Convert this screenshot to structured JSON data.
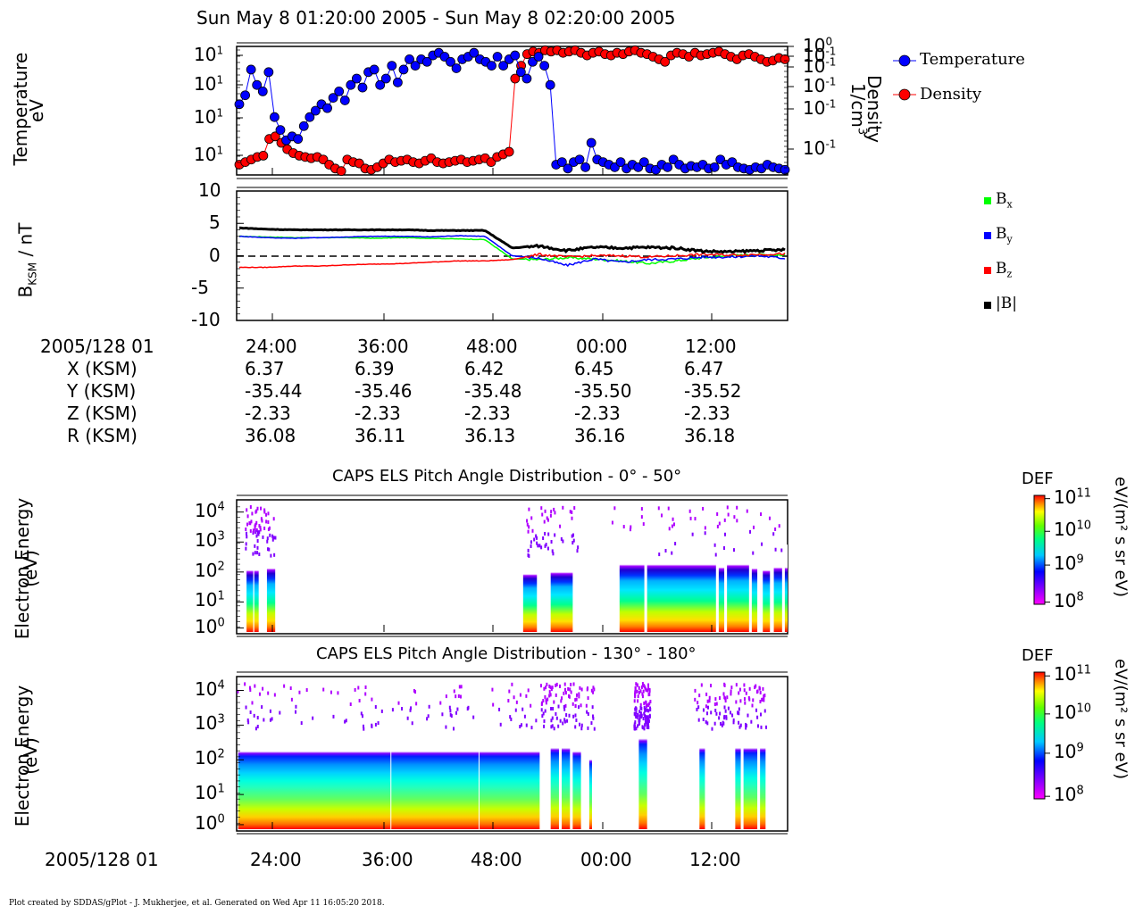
{
  "title": "Sun May 8 01:20:00 2005 - Sun May 8 02:20:00 2005",
  "panel1": {
    "ylabel_left_1": "Temperature",
    "ylabel_left_2": "eV",
    "ylabel_right_1": "Density",
    "ylabel_right_2": "1/cm",
    "ylabel_right_sup": "3",
    "left_ticks": [
      "10",
      "10",
      "10",
      "10"
    ],
    "left_tick_exps": [
      "1",
      "1",
      "1",
      "1"
    ],
    "right_ticks": [
      "10",
      "10",
      "10",
      "10",
      "10"
    ],
    "right_tick_exps": [
      "0",
      "-1",
      "-1",
      "-1",
      "-1"
    ],
    "right_tick_top2": "-1",
    "legend": [
      {
        "name": "Temperature",
        "color": "#0000ff"
      },
      {
        "name": "Density",
        "color": "#ff0000"
      }
    ]
  },
  "panel2": {
    "ylabel": "B",
    "ylabel_sub": "KSM",
    "ylabel_tail": " / nT",
    "yticks": [
      "10",
      "5",
      "0",
      "-5",
      "-10"
    ],
    "legend": [
      {
        "name": "B",
        "sub": "x",
        "color": "#00ff00"
      },
      {
        "name": "B",
        "sub": "y",
        "color": "#0000ff"
      },
      {
        "name": "B",
        "sub": "z",
        "color": "#ff0000"
      },
      {
        "name": "|B|",
        "sub": "",
        "color": "#000000"
      }
    ]
  },
  "ephemeris": {
    "epoch": "2005/128 01",
    "rows": [
      {
        "label": "X (KSM)",
        "values": [
          "6.37",
          "6.39",
          "6.42",
          "6.45",
          "6.47"
        ]
      },
      {
        "label": "Y (KSM)",
        "values": [
          "-35.44",
          "-35.46",
          "-35.48",
          "-35.50",
          "-35.52"
        ]
      },
      {
        "label": "Z (KSM)",
        "values": [
          "-2.33",
          "-2.33",
          "-2.33",
          "-2.33",
          "-2.33"
        ]
      },
      {
        "label": "R (KSM)",
        "values": [
          "36.08",
          "36.11",
          "36.13",
          "36.16",
          "36.18"
        ]
      }
    ],
    "time_ticks": [
      "24:00",
      "36:00",
      "48:00",
      "00:00",
      "12:00"
    ]
  },
  "panel3": {
    "title": "CAPS ELS Pitch Angle Distribution - 0° - 50°",
    "ylabel_1": "Electron Energy",
    "ylabel_2": "(eV)",
    "yticks_exp": [
      "4",
      "3",
      "2",
      "1",
      "0"
    ],
    "colorbar_title": "DEF",
    "colorbar_unit": "eV/(m² s sr eV)",
    "colorbar_ticks_exp": [
      "11",
      "10",
      "9",
      "8"
    ]
  },
  "panel4": {
    "title": "CAPS ELS Pitch Angle Distribution - 130° - 180°",
    "ylabel_1": "Electron Energy",
    "ylabel_2": "(eV)",
    "yticks_exp": [
      "4",
      "3",
      "2",
      "1",
      "0"
    ],
    "colorbar_title": "DEF",
    "colorbar_unit": "eV/(m² s sr eV)",
    "colorbar_ticks_exp": [
      "11",
      "10",
      "9",
      "8"
    ]
  },
  "bottom_axis": {
    "epoch": "2005/128 01",
    "time_ticks": [
      "24:00",
      "36:00",
      "48:00",
      "00:00",
      "12:00"
    ]
  },
  "footer": "Plot created by SDDAS/gPlot - J. Mukherjee, et al.  Generated on Wed Apr 11 16:05:20 2018.",
  "chart_data": [
    {
      "type": "scatter",
      "title": "",
      "xlabel": "",
      "ylabel": "Temperature eV",
      "y2label": "Density 1/cm3",
      "x_ticks": [
        "24:00",
        "36:00",
        "48:00",
        "00:00",
        "12:00"
      ],
      "series": [
        {
          "name": "Temperature",
          "color": "#0000ff",
          "y_frac": [
            0.55,
            0.62,
            0.82,
            0.7,
            0.65,
            0.8,
            0.45,
            0.35,
            0.27,
            0.3,
            0.28,
            0.38,
            0.45,
            0.5,
            0.55,
            0.52,
            0.6,
            0.65,
            0.58,
            0.7,
            0.75,
            0.68,
            0.8,
            0.82,
            0.7,
            0.75,
            0.85,
            0.72,
            0.82,
            0.9,
            0.85,
            0.9,
            0.88,
            0.93,
            0.95,
            0.92,
            0.88,
            0.83,
            0.9,
            0.92,
            0.95,
            0.9,
            0.88,
            0.85,
            0.92,
            0.85,
            0.9,
            0.93,
            0.8,
            0.75,
            0.88,
            0.92,
            0.85,
            0.7,
            0.08,
            0.1,
            0.05,
            0.1,
            0.12,
            0.06,
            0.25,
            0.12,
            0.1,
            0.08,
            0.06,
            0.1,
            0.05,
            0.08,
            0.06,
            0.1,
            0.05,
            0.04,
            0.08,
            0.06,
            0.12,
            0.08,
            0.05,
            0.07,
            0.06,
            0.08,
            0.05,
            0.06,
            0.12,
            0.08,
            0.1,
            0.06,
            0.05,
            0.04,
            0.06,
            0.05,
            0.08,
            0.06,
            0.05,
            0.04
          ]
        },
        {
          "name": "Density",
          "color": "#ff0000",
          "y_frac": [
            0.08,
            0.1,
            0.12,
            0.14,
            0.15,
            0.28,
            0.3,
            0.25,
            0.2,
            0.17,
            0.15,
            0.14,
            0.13,
            0.14,
            0.12,
            0.08,
            0.05,
            0.03,
            0.12,
            0.1,
            0.09,
            0.05,
            0.04,
            0.06,
            0.09,
            0.12,
            0.1,
            0.11,
            0.12,
            0.1,
            0.09,
            0.11,
            0.13,
            0.1,
            0.09,
            0.1,
            0.11,
            0.12,
            0.1,
            0.11,
            0.12,
            0.13,
            0.1,
            0.14,
            0.16,
            0.18,
            0.75,
            0.85,
            0.94,
            0.96,
            0.95,
            0.97,
            0.96,
            0.97,
            0.95,
            0.96,
            0.97,
            0.95,
            0.93,
            0.95,
            0.96,
            0.94,
            0.93,
            0.95,
            0.94,
            0.96,
            0.97,
            0.95,
            0.94,
            0.92,
            0.9,
            0.88,
            0.93,
            0.95,
            0.94,
            0.92,
            0.95,
            0.93,
            0.94,
            0.95,
            0.96,
            0.94,
            0.92,
            0.9,
            0.93,
            0.94,
            0.92,
            0.9,
            0.88,
            0.89,
            0.91,
            0.9
          ]
        }
      ]
    },
    {
      "type": "line",
      "title": "",
      "ylabel": "BKSM / nT",
      "ylim": [
        -10,
        10
      ],
      "x_ticks": [
        "24:00",
        "36:00",
        "48:00",
        "00:00",
        "12:00"
      ],
      "series": [
        {
          "name": "Bx",
          "color": "#00ff00",
          "values": [
            3.0,
            2.9,
            2.8,
            2.8,
            2.8,
            2.7,
            2.8,
            2.7,
            2.6,
            2.5,
            -0.5,
            -0.6,
            -0.3,
            -0.5,
            -0.8,
            -1.2,
            -0.8,
            -0.3,
            0.0,
            0.2,
            0.1
          ]
        },
        {
          "name": "By",
          "color": "#0000ff",
          "values": [
            3.0,
            2.8,
            2.7,
            2.8,
            2.9,
            3.0,
            3.0,
            2.9,
            3.1,
            3.0,
            0.0,
            -0.4,
            -1.5,
            -0.5,
            -1.0,
            -0.6,
            -0.5,
            -0.2,
            -0.2,
            0.0,
            -0.4
          ]
        },
        {
          "name": "Bz",
          "color": "#ff0000",
          "values": [
            -1.8,
            -1.8,
            -1.6,
            -1.6,
            -1.4,
            -1.3,
            -1.2,
            -1.0,
            -0.8,
            -0.8,
            -0.6,
            0.2,
            -0.2,
            0.0,
            0.0,
            -0.2,
            0.0,
            0.2,
            0.1,
            0.2,
            0.3
          ]
        },
        {
          "name": "|B|",
          "color": "#000000",
          "values": [
            4.3,
            4.1,
            4.0,
            4.0,
            4.0,
            4.0,
            4.0,
            3.9,
            3.9,
            3.9,
            1.2,
            1.5,
            0.8,
            1.3,
            1.2,
            1.3,
            1.2,
            0.7,
            0.6,
            0.8,
            0.9
          ]
        }
      ]
    },
    {
      "type": "heatmap",
      "title": "CAPS ELS Pitch Angle Distribution - 0° - 50°",
      "ylabel": "Electron Energy (eV)",
      "colorbar": "DEF eV/(m² s sr eV)",
      "clim_exp": [
        8,
        11
      ]
    },
    {
      "type": "heatmap",
      "title": "CAPS ELS Pitch Angle Distribution - 130° - 180°",
      "ylabel": "Electron Energy (eV)",
      "colorbar": "DEF eV/(m² s sr eV)",
      "clim_exp": [
        8,
        11
      ]
    }
  ]
}
